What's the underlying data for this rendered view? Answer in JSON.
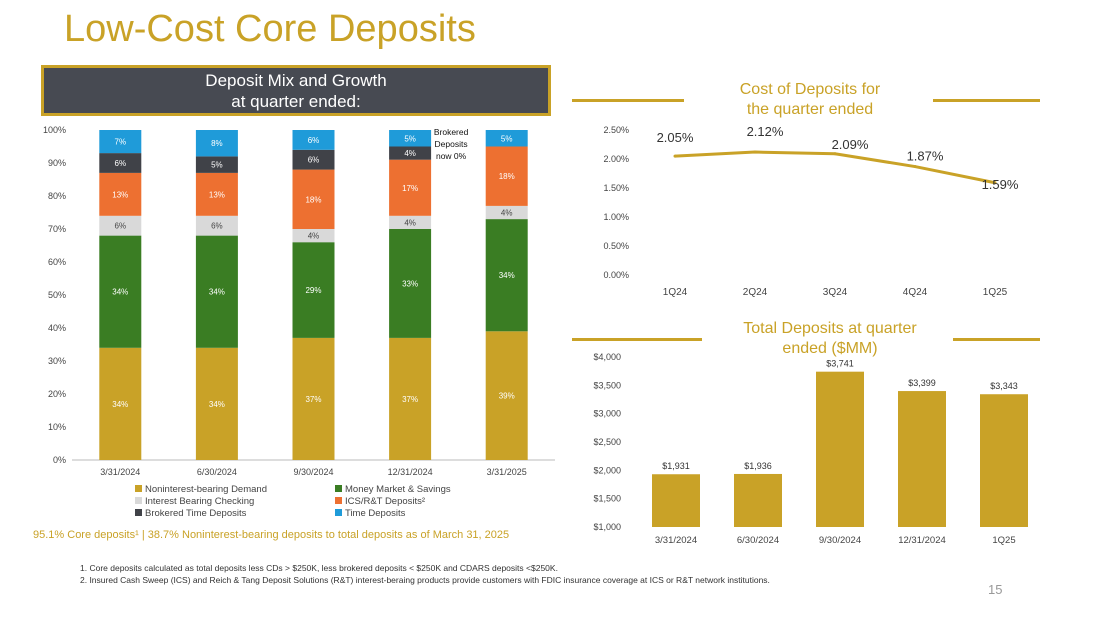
{
  "title": "Low-Cost Core Deposits",
  "mix_title_line1": "Deposit Mix and Growth",
  "mix_title_line2": "at quarter ended:",
  "cost_title_line1": "Cost of Deposits for",
  "cost_title_line2": "the quarter ended",
  "total_title_line1": "Total Deposits at quarter",
  "total_title_line2": "ended ($MM)",
  "brokered_note": [
    "Brokered",
    "Deposits",
    "now 0%"
  ],
  "core_note": "95.1% Core deposits¹ | 38.7% Noninterest-bearing deposits to total deposits as of March 31, 2025",
  "footnotes": [
    "1.    Core deposits calculated as total deposits less CDs > $250K, less brokered deposits < $250K and CDARS deposits <$250K.",
    "2.    Insured Cash Sweep (ICS) and Reich & Tang Deposit Solutions (R&T) interest-beraing products provide customers with FDIC insurance coverage at ICS or R&T network institutions."
  ],
  "page_number": "15",
  "colors": {
    "gold": "#C9A227",
    "green": "#3A7D23",
    "gray": "#D9D9D9",
    "orange": "#ED7031",
    "dark": "#404248",
    "blue": "#1F9BD9"
  },
  "chart_data": [
    {
      "type": "bar",
      "stacked": true,
      "percent": true,
      "title": "Deposit Mix and Growth at quarter ended:",
      "categories": [
        "3/31/2024",
        "6/30/2024",
        "9/30/2024",
        "12/31/2024",
        "3/31/2025"
      ],
      "ylim": [
        0,
        100
      ],
      "yticks": [
        "0%",
        "10%",
        "20%",
        "30%",
        "40%",
        "50%",
        "60%",
        "70%",
        "80%",
        "90%",
        "100%"
      ],
      "series": [
        {
          "name": "Noninterest-bearing Demand",
          "color": "#C9A227",
          "label_color": "#ffffff",
          "values": [
            34,
            34,
            37,
            37,
            39
          ],
          "labels": [
            "34%",
            "34%",
            "37%",
            "37%",
            "39%"
          ]
        },
        {
          "name": "Money Market & Savings",
          "color": "#3A7D23",
          "label_color": "#ffffff",
          "values": [
            34,
            34,
            29,
            33,
            34
          ],
          "labels": [
            "34%",
            "34%",
            "29%",
            "33%",
            "34%"
          ]
        },
        {
          "name": "Interest Bearing Checking",
          "color": "#D9D9D9",
          "label_color": "#444444",
          "values": [
            6,
            6,
            4,
            4,
            4
          ],
          "labels": [
            "6%",
            "6%",
            "4%",
            "4%",
            "4%"
          ]
        },
        {
          "name": "ICS/R&T Deposits²",
          "color": "#ED7031",
          "label_color": "#ffffff",
          "values": [
            13,
            13,
            18,
            17,
            18
          ],
          "labels": [
            "13%",
            "13%",
            "18%",
            "17%",
            "18%"
          ]
        },
        {
          "name": "Brokered Time Deposits",
          "color": "#404248",
          "label_color": "#ffffff",
          "values": [
            6,
            5,
            6,
            4,
            0
          ],
          "labels": [
            "6%",
            "5%",
            "6%",
            "4%",
            ""
          ]
        },
        {
          "name": "Time Deposits",
          "color": "#1F9BD9",
          "label_color": "#ffffff",
          "values": [
            7,
            8,
            6,
            5,
            5
          ],
          "labels": [
            "7%",
            "8%",
            "6%",
            "5%",
            "5%"
          ]
        }
      ],
      "legend": "bottom"
    },
    {
      "type": "line",
      "title": "Cost of Deposits for the quarter ended",
      "categories": [
        "1Q24",
        "2Q24",
        "3Q24",
        "4Q24",
        "1Q25"
      ],
      "values": [
        2.05,
        2.12,
        2.09,
        1.87,
        1.59
      ],
      "labels": [
        "2.05%",
        "2.12%",
        "2.09%",
        "1.87%",
        "1.59%"
      ],
      "ylim": [
        0,
        2.5
      ],
      "yticks": [
        "0.00%",
        "0.50%",
        "1.00%",
        "1.50%",
        "2.00%",
        "2.50%"
      ],
      "color": "#C9A227"
    },
    {
      "type": "bar",
      "title": "Total Deposits at quarter ended ($MM)",
      "categories": [
        "3/31/2024",
        "6/30/2024",
        "9/30/2024",
        "12/31/2024",
        "1Q25"
      ],
      "values": [
        1931,
        1936,
        3741,
        3399,
        3343
      ],
      "labels": [
        "$1,931",
        "$1,936",
        "$3,741",
        "$3,399",
        "$3,343"
      ],
      "ylim": [
        1000,
        4000
      ],
      "yticks": [
        "$1,000",
        "$1,500",
        "$2,000",
        "$2,500",
        "$3,000",
        "$3,500",
        "$4,000"
      ],
      "color": "#C9A227"
    }
  ]
}
